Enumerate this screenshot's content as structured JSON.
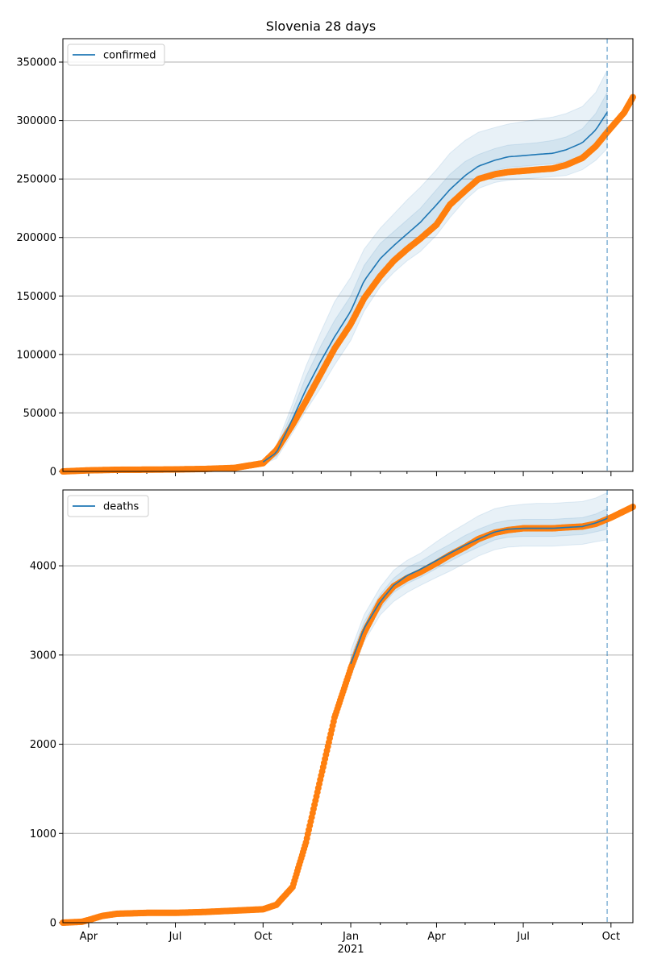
{
  "figure": {
    "title": "Slovenia 28 days"
  },
  "colors": {
    "model": "#1f77b4",
    "observed": "#ff7f0e",
    "grid": "#b0b0b0",
    "band": "#1f77b4"
  },
  "chart_data": [
    {
      "type": "line",
      "title": "Slovenia 28 days",
      "legend": [
        "confirmed"
      ],
      "legend_position": "top-left",
      "grid": "y",
      "ylim": [
        0,
        370000
      ],
      "y_ticks": [
        0,
        50000,
        100000,
        150000,
        200000,
        250000,
        300000,
        350000
      ],
      "y_tick_labels": [
        "0",
        "50000",
        "100000",
        "150000",
        "200000",
        "250000",
        "300000",
        "350000"
      ],
      "vline_date": "2021-09-27",
      "series": [
        {
          "name": "confirmed",
          "kind": "model",
          "x": [
            "2020-10-01",
            "2020-10-15",
            "2020-11-01",
            "2020-11-15",
            "2020-12-01",
            "2020-12-15",
            "2021-01-01",
            "2021-01-15",
            "2021-02-01",
            "2021-02-15",
            "2021-03-01",
            "2021-03-15",
            "2021-04-01",
            "2021-04-15",
            "2021-05-01",
            "2021-05-15",
            "2021-06-01",
            "2021-06-15",
            "2021-07-01",
            "2021-07-15",
            "2021-08-01",
            "2021-08-15",
            "2021-09-01",
            "2021-09-15",
            "2021-09-27"
          ],
          "y": [
            8000,
            16000,
            45000,
            70000,
            95000,
            115000,
            137000,
            163000,
            182000,
            193000,
            203000,
            213000,
            228000,
            241000,
            253000,
            261000,
            266000,
            269000,
            270000,
            271000,
            272000,
            275000,
            281000,
            292000,
            307000
          ],
          "bands": [
            {
              "lower": [
                6000,
                11000,
                33000,
                52000,
                72000,
                91000,
                112000,
                137000,
                158000,
                170000,
                180000,
                188000,
                202000,
                217000,
                232000,
                242000,
                247000,
                249000,
                250000,
                251000,
                252000,
                253000,
                258000,
                266000,
                276000
              ],
              "upper": [
                10000,
                22000,
                58000,
                90000,
                120000,
                145000,
                166000,
                190000,
                208000,
                220000,
                232000,
                243000,
                258000,
                272000,
                283000,
                290000,
                294000,
                297000,
                299000,
                301000,
                303000,
                306000,
                312000,
                324000,
                343000
              ]
            },
            {
              "lower": [
                7000,
                13000,
                38000,
                60000,
                82000,
                102000,
                123000,
                149000,
                170000,
                182000,
                192000,
                201000,
                215000,
                229000,
                243000,
                252000,
                257000,
                260000,
                261000,
                262000,
                263000,
                265000,
                270000,
                279000,
                290000
              ],
              "upper": [
                9000,
                19000,
                52000,
                81000,
                108000,
                129000,
                150000,
                176000,
                195000,
                205000,
                215000,
                225000,
                241000,
                254000,
                265000,
                271000,
                276000,
                279000,
                280000,
                281000,
                283000,
                286000,
                293000,
                306000,
                324000
              ]
            }
          ]
        },
        {
          "name": "",
          "kind": "observed",
          "x": [
            "2020-03-05",
            "2020-04-01",
            "2020-05-01",
            "2020-06-01",
            "2020-07-01",
            "2020-08-01",
            "2020-09-01",
            "2020-10-01",
            "2020-10-15",
            "2020-11-01",
            "2020-11-15",
            "2020-12-01",
            "2020-12-15",
            "2021-01-01",
            "2021-01-15",
            "2021-02-01",
            "2021-02-15",
            "2021-03-01",
            "2021-03-15",
            "2021-04-01",
            "2021-04-15",
            "2021-05-01",
            "2021-05-15",
            "2021-06-01",
            "2021-06-15",
            "2021-07-01",
            "2021-07-15",
            "2021-08-01",
            "2021-08-15",
            "2021-09-01",
            "2021-09-15",
            "2021-09-27",
            "2021-10-15",
            "2021-10-24"
          ],
          "y": [
            0,
            900,
            1400,
            1500,
            1700,
            2100,
            3000,
            7000,
            18000,
            40000,
            60000,
            84000,
            105000,
            126000,
            148000,
            167000,
            180000,
            190000,
            199000,
            211000,
            228000,
            240000,
            250000,
            254000,
            256000,
            257000,
            258000,
            259000,
            262000,
            268000,
            278000,
            290000,
            307000,
            320000
          ]
        }
      ]
    },
    {
      "type": "line",
      "legend": [
        "deaths"
      ],
      "legend_position": "top-left",
      "grid": "y",
      "ylim": [
        0,
        4850
      ],
      "y_ticks": [
        0,
        1000,
        2000,
        3000,
        4000
      ],
      "y_tick_labels": [
        "0",
        "1000",
        "2000",
        "3000",
        "4000"
      ],
      "x_ticks": [
        "2020-04-01",
        "2020-07-01",
        "2020-10-01",
        "2021-01-01",
        "2021-04-01",
        "2021-07-01",
        "2021-10-01"
      ],
      "x_tick_labels": [
        "Apr",
        "Jul",
        "Oct",
        "Jan",
        "Apr",
        "Jul",
        "Oct"
      ],
      "x_sublabel": "2021",
      "vline_date": "2021-09-27",
      "series": [
        {
          "name": "deaths",
          "kind": "model",
          "x": [
            "2021-01-01",
            "2021-01-15",
            "2021-02-01",
            "2021-02-15",
            "2021-03-01",
            "2021-03-15",
            "2021-04-01",
            "2021-04-15",
            "2021-05-01",
            "2021-05-15",
            "2021-06-01",
            "2021-06-15",
            "2021-07-01",
            "2021-07-15",
            "2021-08-01",
            "2021-08-15",
            "2021-09-01",
            "2021-09-15",
            "2021-09-27"
          ],
          "y": [
            2900,
            3300,
            3600,
            3780,
            3890,
            3960,
            4060,
            4140,
            4230,
            4300,
            4380,
            4410,
            4420,
            4420,
            4420,
            4430,
            4440,
            4480,
            4530
          ],
          "bands": [
            {
              "lower": [
                2750,
                3150,
                3450,
                3600,
                3700,
                3780,
                3870,
                3940,
                4030,
                4110,
                4180,
                4210,
                4220,
                4220,
                4220,
                4230,
                4240,
                4270,
                4290
              ],
              "upper": [
                3050,
                3450,
                3760,
                3950,
                4060,
                4140,
                4270,
                4370,
                4470,
                4560,
                4640,
                4670,
                4690,
                4700,
                4700,
                4710,
                4720,
                4760,
                4820
              ]
            },
            {
              "lower": [
                2830,
                3230,
                3520,
                3700,
                3800,
                3870,
                3970,
                4050,
                4140,
                4210,
                4290,
                4320,
                4330,
                4330,
                4330,
                4340,
                4350,
                4380,
                4410
              ],
              "upper": [
                2970,
                3370,
                3680,
                3860,
                3980,
                4050,
                4160,
                4240,
                4340,
                4410,
                4480,
                4510,
                4520,
                4520,
                4520,
                4530,
                4540,
                4580,
                4640
              ]
            }
          ]
        },
        {
          "name": "",
          "kind": "observed",
          "x": [
            "2020-03-05",
            "2020-03-25",
            "2020-04-01",
            "2020-04-15",
            "2020-05-01",
            "2020-06-01",
            "2020-07-01",
            "2020-08-01",
            "2020-09-01",
            "2020-10-01",
            "2020-10-15",
            "2020-11-01",
            "2020-11-15",
            "2020-12-01",
            "2020-12-15",
            "2021-01-01",
            "2021-01-15",
            "2021-02-01",
            "2021-02-15",
            "2021-03-01",
            "2021-03-15",
            "2021-04-01",
            "2021-04-15",
            "2021-05-01",
            "2021-05-15",
            "2021-06-01",
            "2021-06-15",
            "2021-07-01",
            "2021-07-15",
            "2021-08-01",
            "2021-08-15",
            "2021-09-01",
            "2021-09-15",
            "2021-10-01",
            "2021-10-24"
          ],
          "y": [
            0,
            10,
            30,
            75,
            100,
            110,
            110,
            120,
            135,
            150,
            200,
            400,
            900,
            1650,
            2300,
            2850,
            3250,
            3600,
            3770,
            3860,
            3930,
            4030,
            4120,
            4210,
            4300,
            4370,
            4400,
            4420,
            4420,
            4420,
            4430,
            4440,
            4470,
            4540,
            4660
          ]
        }
      ]
    }
  ]
}
